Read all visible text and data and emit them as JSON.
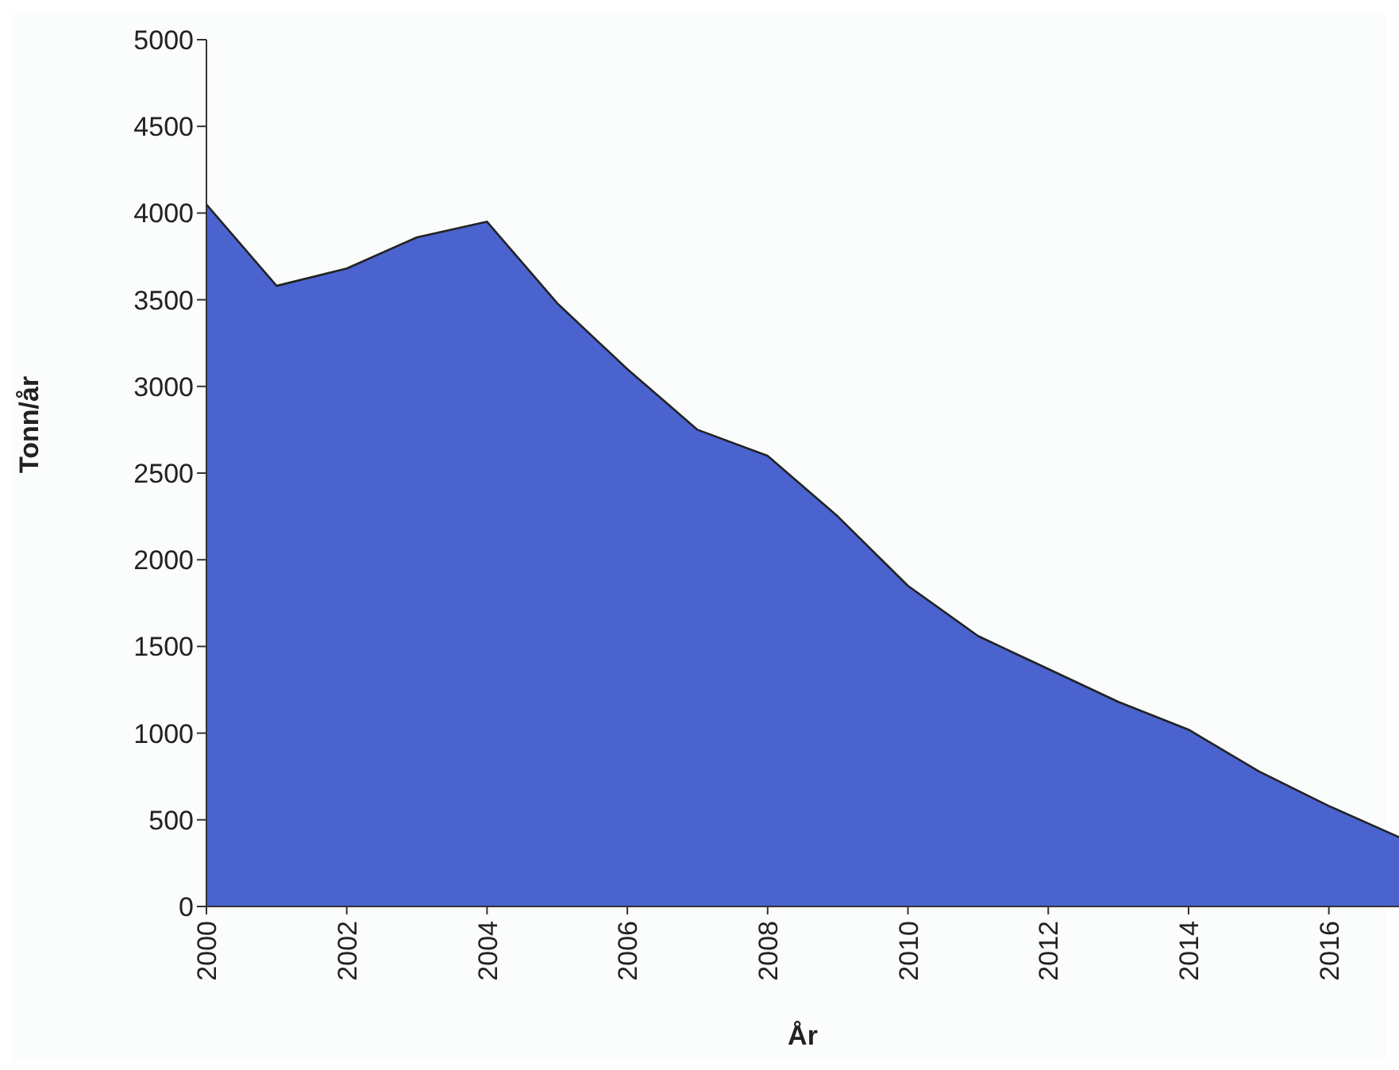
{
  "chart_data": {
    "type": "area",
    "xlabel": "År",
    "ylabel": "Tonn/år",
    "x": [
      2000,
      2001,
      2002,
      2003,
      2004,
      2005,
      2006,
      2007,
      2008,
      2009,
      2010,
      2011,
      2012,
      2013,
      2014,
      2015,
      2016,
      2017
    ],
    "series": [
      {
        "color": "#4a63cf",
        "values": [
          4050,
          3580,
          3680,
          3860,
          3950,
          3480,
          3100,
          2750,
          2600,
          2250,
          1850,
          1560,
          1370,
          1180,
          1020,
          780,
          580,
          400
        ]
      }
    ],
    "xlim": [
      2000,
      2017
    ],
    "xticks": [
      2000,
      2002,
      2004,
      2006,
      2008,
      2010,
      2012,
      2014,
      2016
    ],
    "ylim": [
      0,
      5000
    ],
    "yticks": [
      0,
      500,
      1000,
      1500,
      2000,
      2500,
      3000,
      3500,
      4000,
      4500,
      5000
    ],
    "grid": false,
    "legend": false
  }
}
